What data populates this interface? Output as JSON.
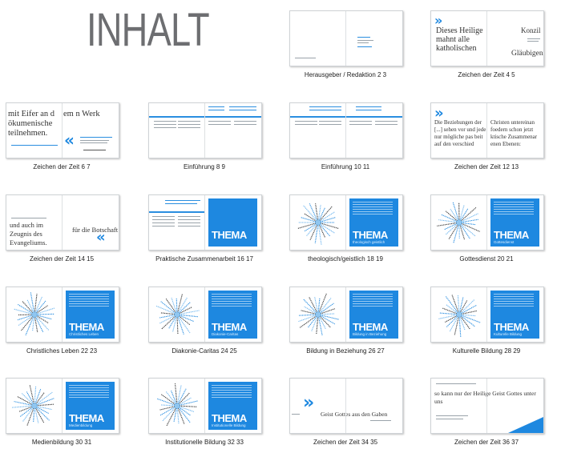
{
  "title": "INHALT",
  "items": [
    {
      "label": "Herausgeber / Redaktion 2 3"
    },
    {
      "label": "Zeichen der Zeit 4 5",
      "left_text": "Dieses Heilige mahnt alle katholischen",
      "right_text": "Konzil",
      "right_text2": "Gläubigen,"
    },
    {
      "label": "Zeichen der Zeit  6 7",
      "left_text": "mit Eifer an d ökumenische teilnehmen.",
      "right_text": "em n Werk"
    },
    {
      "label": "Einführung 8 9"
    },
    {
      "label": "Einführung 10 11"
    },
    {
      "label": "Zeichen der Zeit 12 13",
      "left_text": "Die Beziehungen der [...] sehen vor und jede nur mögliche pas beit auf den verschied",
      "right_text": "Christen untereinan foedern schon jetzt ktische Zusammenar enen Ebenen:"
    },
    {
      "label": "Zeichen der Zeit 14 15",
      "left_text": "und auch im Zeugnis des Evangeliums.",
      "right_text": "für die Botschaft"
    },
    {
      "label": "Praktische Zusammenarbeit 16 17",
      "thema": "THEMA"
    },
    {
      "label": "theologisch/geistlich 18 19",
      "thema": "THEMA",
      "sub": "theologisch geistlich"
    },
    {
      "label": "Gottesdienst 20 21",
      "thema": "THEMA",
      "sub": "Gottesdienst"
    },
    {
      "label": "Christliches Leben 22 23",
      "thema": "THEMA",
      "sub": "Christliches Leben"
    },
    {
      "label": "Diakonie-Caritas 24 25",
      "thema": "THEMA",
      "sub": "Diakonie-Caritas"
    },
    {
      "label": "Bildung in Beziehung 26 27",
      "thema": "THEMA",
      "sub": "Bildung in Beziehung"
    },
    {
      "label": "Kulturelle Bildung 28 29",
      "thema": "THEMA",
      "sub": "Kulturelle Bildung"
    },
    {
      "label": "Medienbildung 30 31",
      "thema": "THEMA",
      "sub": "Medienbildung"
    },
    {
      "label": "Institutionelle Bildung 32 33",
      "thema": "THEMA",
      "sub": "Institutionelle Bildung"
    },
    {
      "label": "Zeichen der Zeit 34 35",
      "left_text": "Geist Gottes aus den Gaben"
    },
    {
      "label": "Zeichen der Zeit 36 37",
      "left_text": "so kann nur der Heilige Geist Gottes unter uns"
    }
  ],
  "colors": {
    "accent": "#1e88e0",
    "title": "#6d6e71"
  }
}
